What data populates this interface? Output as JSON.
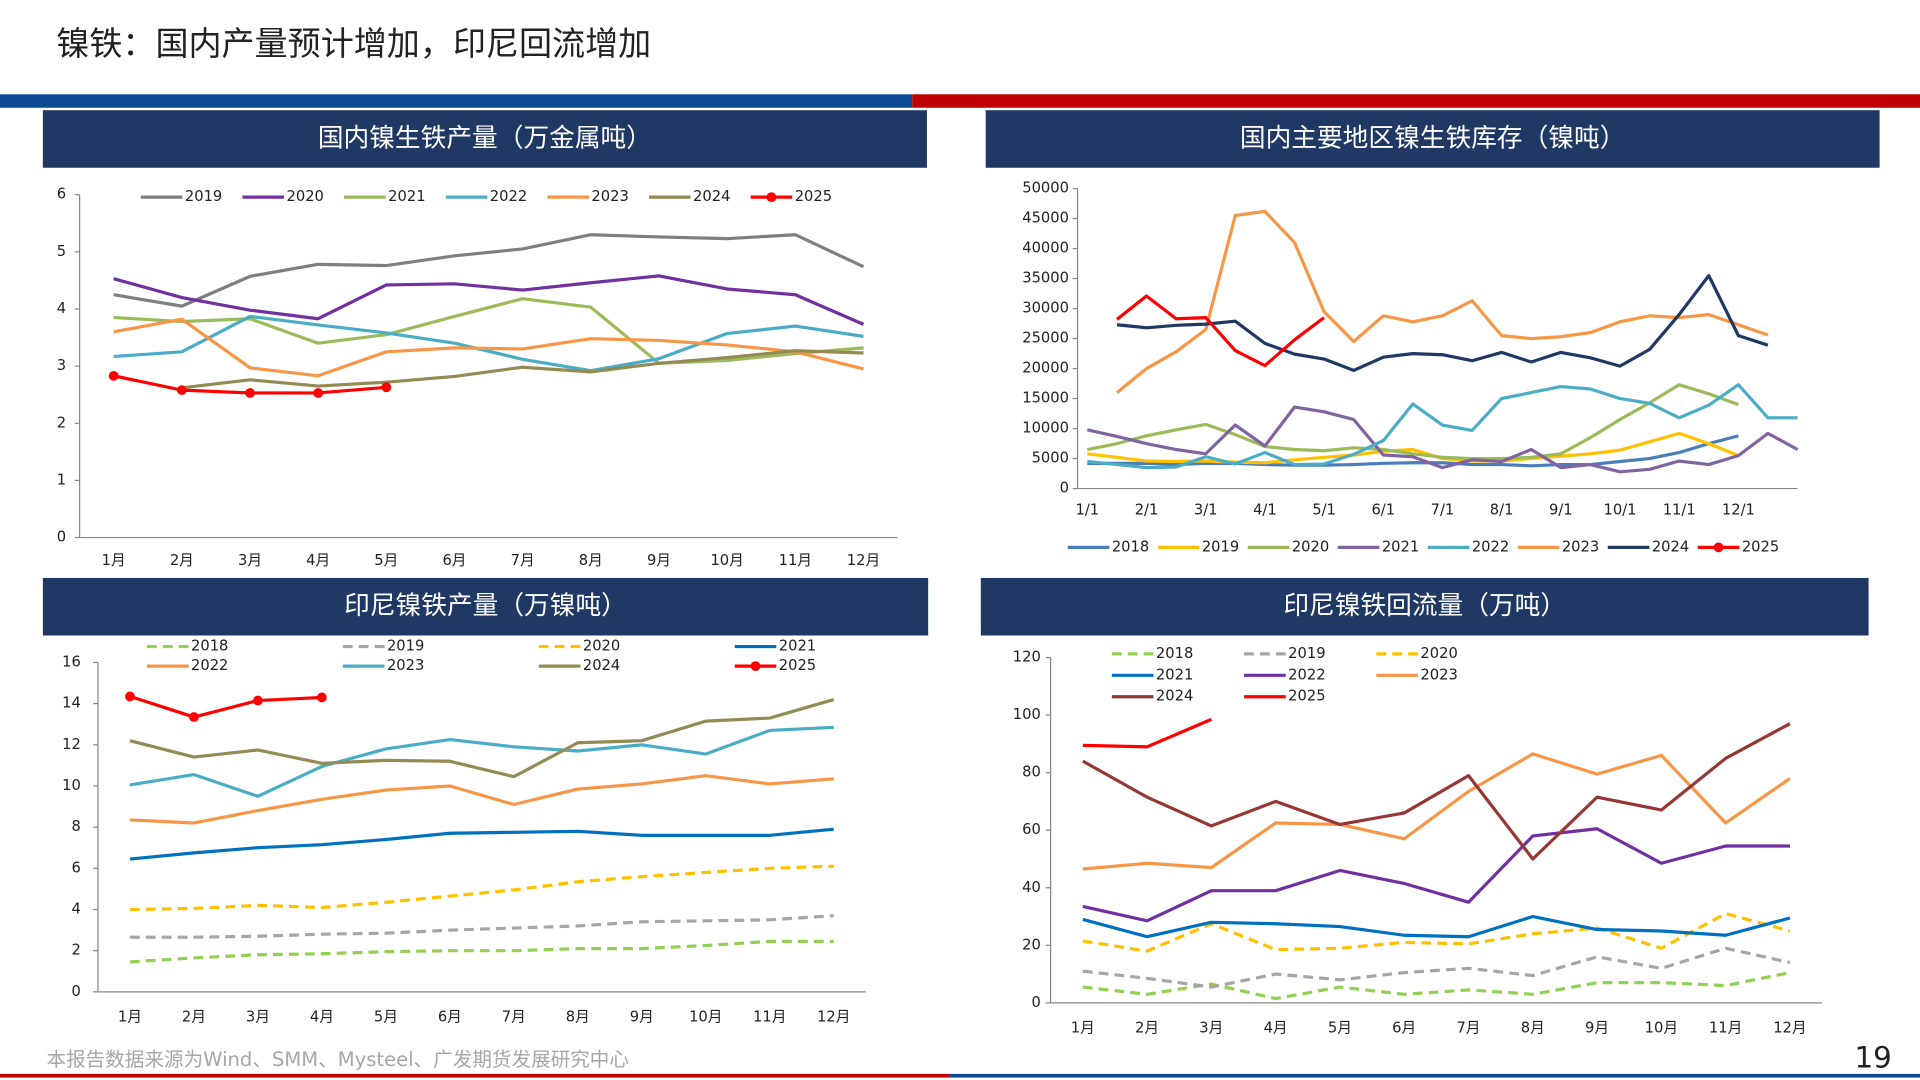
{
  "title": "镍铁：国内产量预计增加，印尼回流增加",
  "source": "本报告数据来源为Wind、SMM、Mysteel、广发期货发展研究中心",
  "page_number": "19",
  "chart_data": [
    {
      "type": "line",
      "title": "国内镍生铁产量（万金属吨）",
      "categories": [
        "1月",
        "2月",
        "3月",
        "4月",
        "5月",
        "6月",
        "7月",
        "8月",
        "9月",
        "10月",
        "11月",
        "12月"
      ],
      "ylim": [
        0,
        6
      ],
      "yticks": [
        0,
        1,
        2,
        3,
        4,
        5,
        6
      ],
      "series": [
        {
          "name": "2019",
          "color": "#7f7f7f",
          "values": [
            4.25,
            4.05,
            4.57,
            4.78,
            4.76,
            4.93,
            5.05,
            5.3,
            5.26,
            5.23,
            5.3,
            4.74
          ]
        },
        {
          "name": "2020",
          "color": "#7030a0",
          "values": [
            4.53,
            4.2,
            3.98,
            3.83,
            4.42,
            4.44,
            4.33,
            4.46,
            4.58,
            4.35,
            4.25,
            3.73
          ]
        },
        {
          "name": "2021",
          "color": "#9bbb59",
          "values": [
            3.85,
            3.78,
            3.83,
            3.4,
            3.55,
            3.87,
            4.18,
            4.03,
            3.05,
            3.1,
            3.22,
            3.32
          ]
        },
        {
          "name": "2022",
          "color": "#4bacc6",
          "values": [
            3.17,
            3.25,
            3.87,
            3.72,
            3.58,
            3.4,
            3.12,
            2.92,
            3.13,
            3.57,
            3.7,
            3.52
          ]
        },
        {
          "name": "2023",
          "color": "#f79646",
          "values": [
            3.6,
            3.82,
            2.97,
            2.83,
            3.25,
            3.32,
            3.3,
            3.48,
            3.45,
            3.37,
            3.25,
            2.95
          ]
        },
        {
          "name": "2024",
          "color": "#948a54",
          "values": [
            null,
            2.62,
            2.76,
            2.65,
            2.72,
            2.82,
            2.98,
            2.9,
            3.05,
            3.15,
            3.27,
            3.23
          ]
        },
        {
          "name": "2025",
          "color": "#ff0000",
          "markers": true,
          "values": [
            2.83,
            2.58,
            2.53,
            2.53,
            2.63,
            null,
            null,
            null,
            null,
            null,
            null,
            null
          ]
        }
      ]
    },
    {
      "type": "line",
      "title": "国内主要地区镍生铁库存（镍吨）",
      "points": true,
      "categories": [
        "1/1",
        null,
        "2/1",
        null,
        "3/1",
        null,
        "4/1",
        null,
        "5/1",
        null,
        "6/1",
        null,
        "7/1",
        null,
        "8/1",
        null,
        "9/1",
        null,
        "10/1",
        null,
        "11/1",
        null,
        "12/1",
        null,
        null
      ],
      "ylim": [
        0,
        50000
      ],
      "yticks": [
        0,
        5000,
        10000,
        15000,
        20000,
        25000,
        30000,
        35000,
        40000,
        45000,
        50000
      ],
      "series": [
        {
          "name": "2018",
          "color": "#4a7ebb",
          "values": [
            4200,
            4200,
            4200,
            4000,
            4200,
            4200,
            4000,
            3900,
            3900,
            4000,
            4200,
            4300,
            4300,
            4000,
            4000,
            3800,
            4000,
            4000,
            4500,
            5000,
            6000,
            7500,
            8800,
            null,
            null
          ]
        },
        {
          "name": "2019",
          "color": "#ffc000",
          "values": [
            5800,
            5200,
            4600,
            4500,
            4600,
            4400,
            4300,
            4800,
            5200,
            5600,
            6200,
            6500,
            5000,
            4600,
            4600,
            5000,
            5400,
            5800,
            6400,
            7800,
            9200,
            7500,
            5500,
            null,
            null
          ]
        },
        {
          "name": "2020",
          "color": "#9bbb59",
          "values": [
            6500,
            7500,
            8800,
            9800,
            10700,
            9000,
            7000,
            6500,
            6300,
            6800,
            6500,
            5800,
            5200,
            5000,
            5000,
            5200,
            5800,
            8500,
            11500,
            14300,
            17300,
            15800,
            14000,
            null,
            null
          ]
        },
        {
          "name": "2021",
          "color": "#8064a2",
          "values": [
            9800,
            8700,
            7500,
            6500,
            5800,
            10600,
            7100,
            13600,
            12800,
            11500,
            5600,
            5300,
            3500,
            4800,
            4500,
            6500,
            3500,
            4000,
            2800,
            3200,
            4600,
            4000,
            5500,
            9200,
            6500
          ]
        },
        {
          "name": "2022",
          "color": "#4bacc6",
          "values": [
            4500,
            4000,
            3500,
            3600,
            5300,
            4100,
            6000,
            4000,
            4100,
            5700,
            8000,
            14100,
            10600,
            9700,
            15000,
            16000,
            17000,
            16600,
            15000,
            14200,
            11800,
            13900,
            17300,
            11800,
            11800
          ]
        },
        {
          "name": "2023",
          "color": "#f79646",
          "values": [
            null,
            16000,
            20000,
            22800,
            26500,
            45500,
            46200,
            41000,
            29500,
            24500,
            28800,
            27800,
            28800,
            31300,
            25500,
            25000,
            25300,
            26000,
            27800,
            28800,
            28500,
            29000,
            27300,
            25600,
            null
          ]
        },
        {
          "name": "2024",
          "color": "#1f3864",
          "values": [
            null,
            27300,
            26800,
            27200,
            27400,
            27900,
            24200,
            22400,
            21600,
            19700,
            21900,
            22500,
            22300,
            21300,
            22700,
            21100,
            22700,
            21800,
            20400,
            23200,
            29000,
            35500,
            25500,
            23900,
            null
          ]
        },
        {
          "name": "2025",
          "color": "#ff0000",
          "legend_marker": true,
          "values": [
            null,
            28200,
            32100,
            28300,
            28500,
            23000,
            20500,
            24800,
            28500,
            null,
            null,
            null,
            null,
            null,
            null,
            null,
            null,
            null,
            null,
            null,
            null,
            null,
            null,
            null,
            null
          ]
        }
      ]
    },
    {
      "type": "line",
      "title": "印尼镍铁产量（万镍吨）",
      "categories": [
        "1月",
        "2月",
        "3月",
        "4月",
        "5月",
        "6月",
        "7月",
        "8月",
        "9月",
        "10月",
        "11月",
        "12月"
      ],
      "ylim": [
        0,
        16
      ],
      "yticks": [
        0,
        2,
        4,
        6,
        8,
        10,
        12,
        14,
        16
      ],
      "series": [
        {
          "name": "2018",
          "color": "#92d050",
          "dash": true,
          "values": [
            1.45,
            1.65,
            1.8,
            1.85,
            1.95,
            2.0,
            2.0,
            2.1,
            2.1,
            2.25,
            2.45,
            2.45
          ]
        },
        {
          "name": "2019",
          "color": "#a6a6a6",
          "dash": true,
          "values": [
            2.65,
            2.65,
            2.7,
            2.8,
            2.85,
            3.0,
            3.1,
            3.2,
            3.4,
            3.45,
            3.5,
            3.7
          ]
        },
        {
          "name": "2020",
          "color": "#ffc000",
          "dash": true,
          "values": [
            4.0,
            4.05,
            4.2,
            4.1,
            4.35,
            4.65,
            4.95,
            5.35,
            5.6,
            5.8,
            6.0,
            6.1
          ]
        },
        {
          "name": "2021",
          "color": "#0070c0",
          "values": [
            6.45,
            6.75,
            7.0,
            7.15,
            7.4,
            7.7,
            7.75,
            7.8,
            7.6,
            7.6,
            7.6,
            7.9
          ]
        },
        {
          "name": "2022",
          "color": "#f79646",
          "values": [
            8.35,
            8.2,
            8.8,
            9.35,
            9.8,
            10.0,
            9.1,
            9.85,
            10.1,
            10.5,
            10.1,
            10.35
          ]
        },
        {
          "name": "2023",
          "color": "#4bacc6",
          "values": [
            10.05,
            10.55,
            9.5,
            10.95,
            11.8,
            12.25,
            11.9,
            11.7,
            12.0,
            11.55,
            12.7,
            12.85
          ]
        },
        {
          "name": "2024",
          "color": "#948a54",
          "values": [
            12.2,
            11.4,
            11.75,
            11.1,
            11.25,
            11.2,
            10.45,
            12.1,
            12.2,
            13.15,
            13.3,
            14.2
          ]
        },
        {
          "name": "2025",
          "color": "#ff0000",
          "markers": true,
          "values": [
            14.35,
            13.35,
            14.15,
            14.3,
            null,
            null,
            null,
            null,
            null,
            null,
            null,
            null
          ]
        }
      ]
    },
    {
      "type": "line",
      "title": "印尼镍铁回流量（万吨）",
      "categories": [
        "1月",
        "2月",
        "3月",
        "4月",
        "5月",
        "6月",
        "7月",
        "8月",
        "9月",
        "10月",
        "11月",
        "12月"
      ],
      "ylim": [
        0,
        120
      ],
      "yticks": [
        0,
        20,
        40,
        60,
        80,
        100,
        120
      ],
      "series": [
        {
          "name": "2018",
          "color": "#92d050",
          "dash": true,
          "values": [
            5.5,
            3,
            6.5,
            1.5,
            5.5,
            3,
            4.5,
            3,
            7,
            7,
            6,
            10.5
          ]
        },
        {
          "name": "2019",
          "color": "#a6a6a6",
          "dash": true,
          "values": [
            11,
            8.5,
            5.5,
            10,
            8,
            10.5,
            12,
            9.5,
            16,
            12,
            19,
            14
          ]
        },
        {
          "name": "2020",
          "color": "#ffc000",
          "dash": true,
          "values": [
            21.5,
            18,
            27.5,
            18.5,
            19,
            21,
            20.5,
            24,
            26,
            19,
            31,
            25
          ]
        },
        {
          "name": "2021",
          "color": "#0070c0",
          "values": [
            29,
            23,
            28,
            27.5,
            26.5,
            23.5,
            23,
            30,
            25.5,
            25,
            23.5,
            29.5
          ]
        },
        {
          "name": "2022",
          "color": "#7030a0",
          "values": [
            33.5,
            28.5,
            39,
            39,
            46,
            41.5,
            35,
            58,
            60.5,
            48.5,
            54.5,
            54.5
          ]
        },
        {
          "name": "2023",
          "color": "#f79646",
          "values": [
            46.5,
            48.5,
            47,
            62.5,
            62,
            57,
            73.5,
            86.5,
            79.5,
            86,
            62.5,
            78
          ]
        },
        {
          "name": "2024",
          "color": "#953735",
          "values": [
            84,
            71.5,
            61.5,
            70,
            62,
            66,
            79,
            50,
            71.5,
            67,
            85,
            97
          ]
        },
        {
          "name": "2025",
          "color": "#ff0000",
          "values": [
            89.5,
            89,
            98.5,
            null,
            null,
            null,
            null,
            null,
            null,
            null,
            null,
            null
          ]
        }
      ]
    }
  ]
}
